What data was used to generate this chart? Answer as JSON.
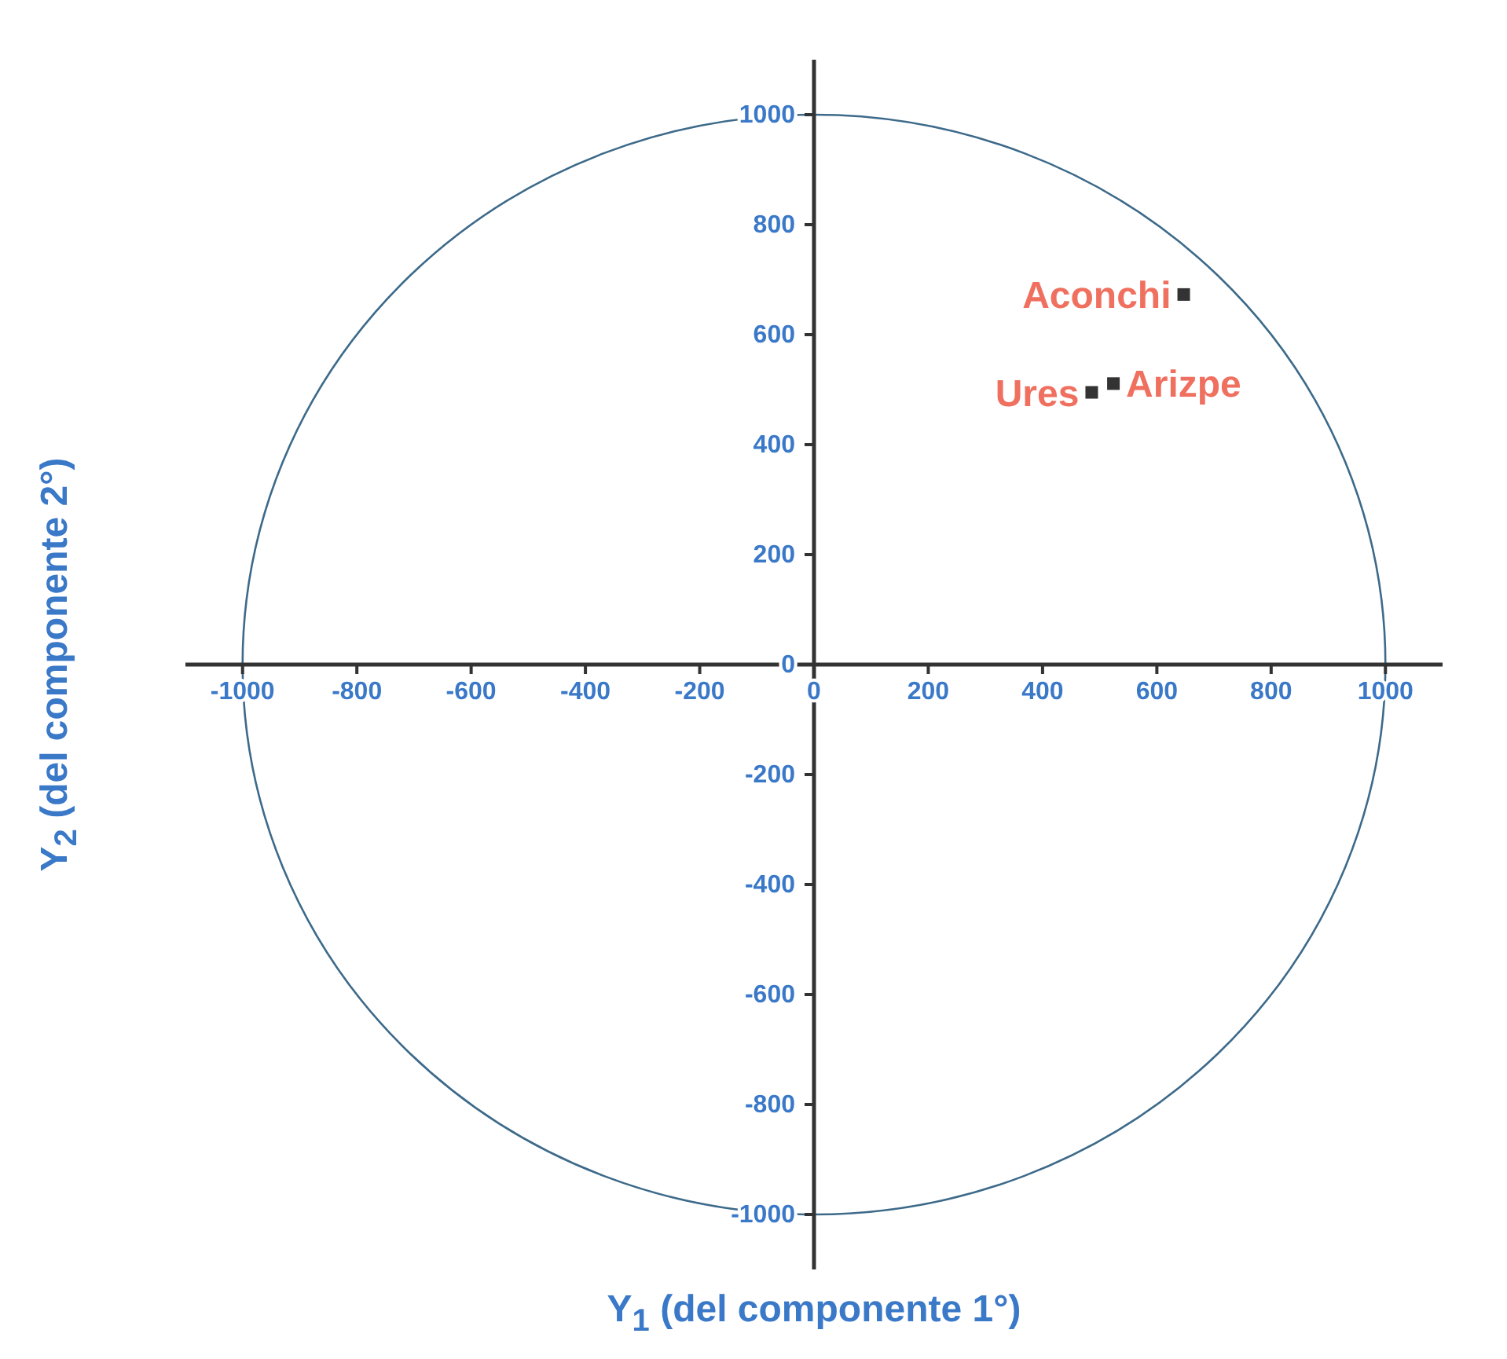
{
  "chart_data": {
    "type": "scatter",
    "xlabel": "Y$_{1}$  (del componente 1°)",
    "ylabel": "Y$_{2}$  (del componente 2°)",
    "xlim": [
      -1100,
      1100
    ],
    "ylim": [
      -1100,
      1100
    ],
    "xticks": [
      -1000,
      -800,
      -600,
      -400,
      -200,
      0,
      200,
      400,
      600,
      800,
      1000
    ],
    "yticks": [
      -1000,
      -800,
      -600,
      -400,
      -200,
      0,
      200,
      400,
      600,
      800,
      1000
    ],
    "grid": false,
    "legend": false,
    "series": [
      {
        "type": "scatter",
        "color": "#333333",
        "marker": "square",
        "x": [
          647,
          486,
          524
        ],
        "values": [
          673,
          495,
          511
        ]
      }
    ],
    "annotations": [
      {
        "text": "Aconchi",
        "x": 647,
        "y": 673
      },
      {
        "text": "Ures",
        "x": 486,
        "y": 495
      },
      {
        "text": "Arizpe",
        "x": 524,
        "y": 511
      }
    ]
  }
}
